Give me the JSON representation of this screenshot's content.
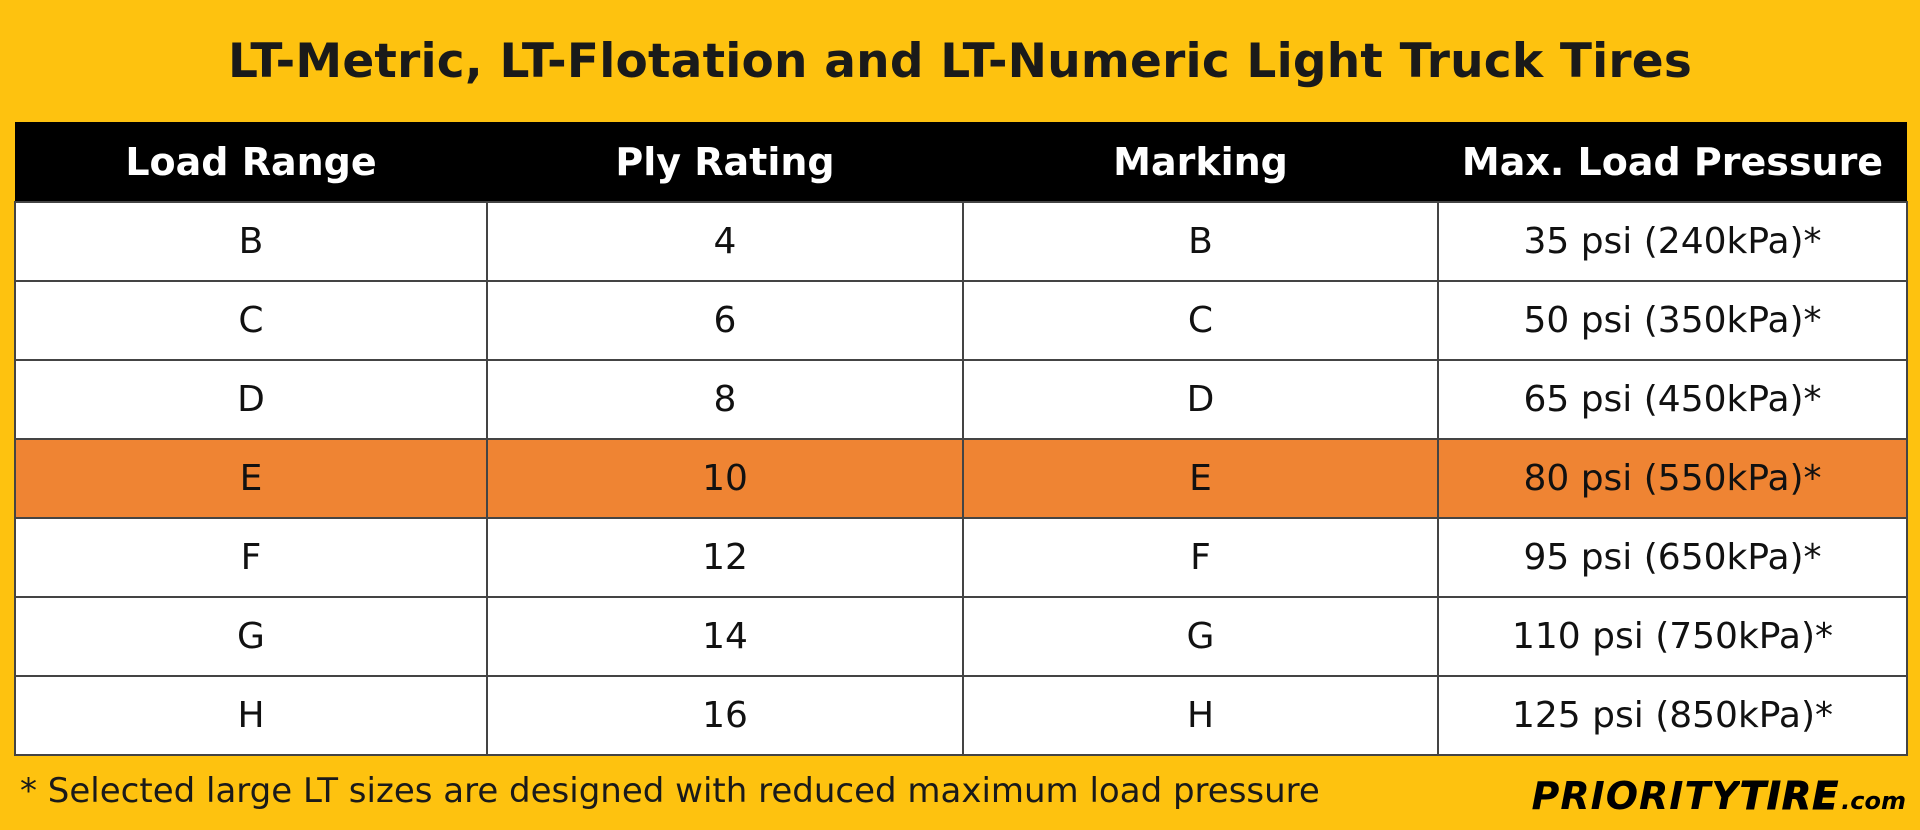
{
  "title": "LT-Metric, LT-Flotation and LT-Numeric Light Truck Tires",
  "columns": [
    "Load Range",
    "Ply Rating",
    "Marking",
    "Max. Load Pressure"
  ],
  "rows": [
    [
      "B",
      "4",
      "B",
      "35 psi (240kPa)*"
    ],
    [
      "C",
      "6",
      "C",
      "50 psi (350kPa)*"
    ],
    [
      "D",
      "8",
      "D",
      "65 psi (450kPa)*"
    ],
    [
      "E",
      "10",
      "E",
      "80 psi (550kPa)*"
    ],
    [
      "F",
      "12",
      "F",
      "95 psi (650kPa)*"
    ],
    [
      "G",
      "14",
      "G",
      "110 psi (750kPa)*"
    ],
    [
      "H",
      "16",
      "H",
      "125 psi (850kPa)*"
    ]
  ],
  "highlighted_row_index": 3,
  "footnote": "* Selected large LT sizes are designed with reduced maximum load pressure",
  "logo": {
    "part1": "PRIORITY",
    "part2": "TIRE",
    "part3": ".com"
  },
  "colors": {
    "background": "#fec20f",
    "header": "#000000",
    "highlight": "#ef8433",
    "row": "#ffffff"
  }
}
